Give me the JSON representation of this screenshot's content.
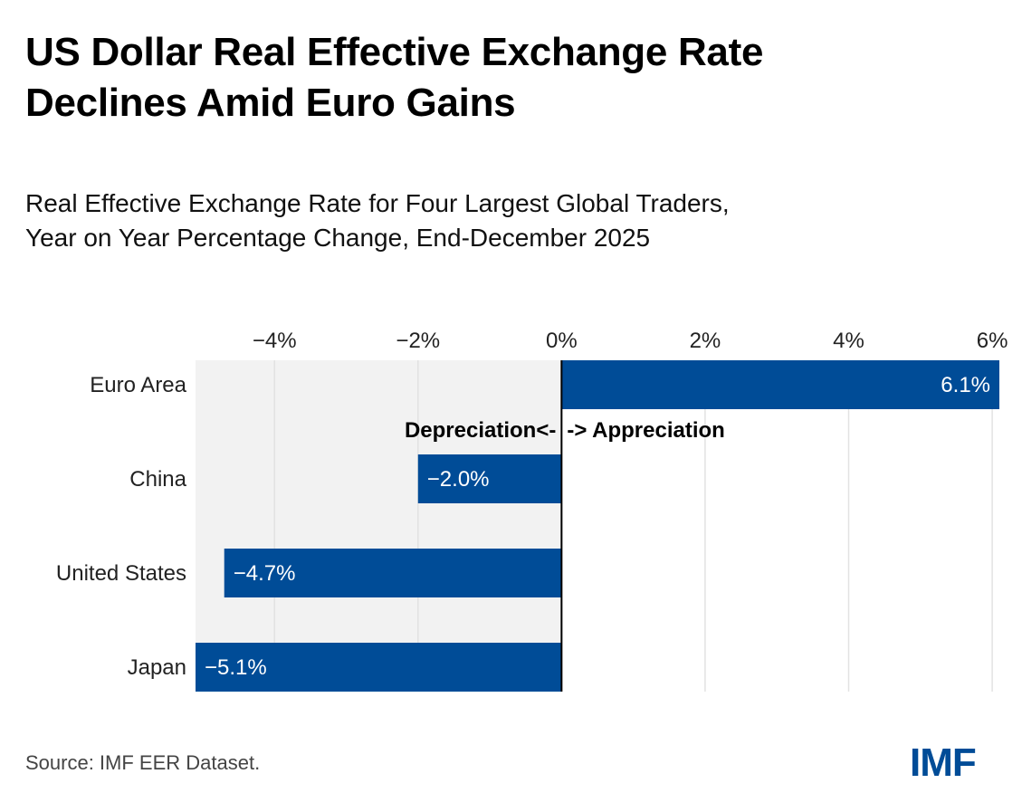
{
  "header": {
    "title_line1": "US Dollar Real Effective Exchange Rate",
    "title_line2": "Declines Amid Euro Gains",
    "subtitle_line1": "Real Effective Exchange Rate for Four Largest Global Traders,",
    "subtitle_line2": "Year on Year Percentage Change, End-December 2025"
  },
  "footer": {
    "source": "Source: IMF EER Dataset.",
    "logo": "IMF"
  },
  "colors": {
    "bar": "#004C97",
    "negative_region": "#F2F2F2",
    "gridline": "#E2E2E2",
    "zero_line": "#000000"
  },
  "chart_data": {
    "type": "bar",
    "orientation": "horizontal",
    "title": "US Dollar Real Effective Exchange Rate Declines Amid Euro Gains",
    "subtitle": "Real Effective Exchange Rate for Four Largest Global Traders, Year on Year Percentage Change, End-December 2025",
    "categories": [
      "Euro Area",
      "China",
      "United States",
      "Japan"
    ],
    "values": [
      6.1,
      -2.0,
      -4.7,
      -5.1
    ],
    "value_labels": [
      "6.1%",
      "−2.0%",
      "−4.7%",
      "−5.1%"
    ],
    "unit": "%",
    "xlabel": "",
    "ylabel": "",
    "xlim": [
      -5.1,
      6.1
    ],
    "xticks": [
      -4,
      -2,
      0,
      2,
      4,
      6
    ],
    "xtick_labels": [
      "−4%",
      "−2%",
      "0%",
      "2%",
      "4%",
      "6%"
    ],
    "xaxis_position": "top",
    "grid": true,
    "negative_region_shaded": true,
    "annotations": [
      {
        "text": "Depreciation<-",
        "anchor": "left-of-zero",
        "between": [
          "Euro Area",
          "China"
        ]
      },
      {
        "text": "-> Appreciation",
        "anchor": "right-of-zero",
        "between": [
          "Euro Area",
          "China"
        ]
      }
    ],
    "source": "Source: IMF EER Dataset."
  }
}
